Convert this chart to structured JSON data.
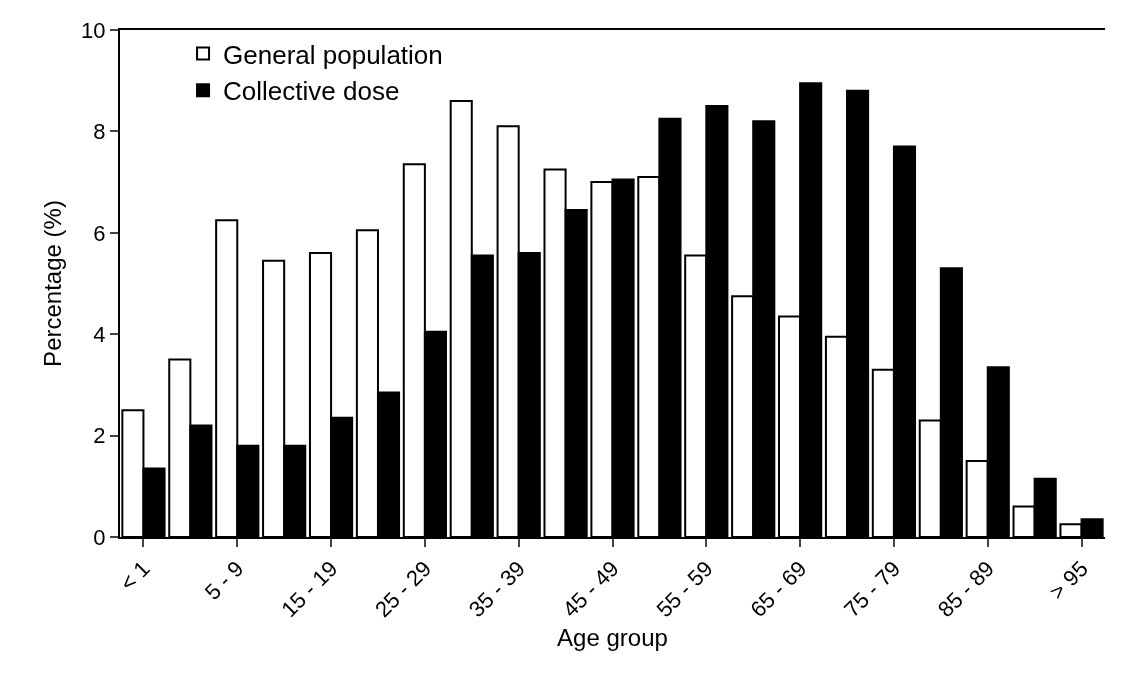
{
  "chart_data": {
    "type": "bar",
    "xlabel": "Age group",
    "ylabel": "Percentage (%)",
    "categories": [
      "< 1",
      null,
      "5 - 9",
      null,
      "15 - 19",
      null,
      "25 - 29",
      null,
      "35 - 39",
      null,
      "45 - 49",
      null,
      "55 - 59",
      null,
      "65 - 69",
      null,
      "75 - 79",
      null,
      "85 - 89",
      null,
      "> 95"
    ],
    "series": [
      {
        "name": "General population",
        "color": "#ffffff",
        "values": [
          2.5,
          3.5,
          6.25,
          5.45,
          5.6,
          6.05,
          7.35,
          8.6,
          8.1,
          7.25,
          7.0,
          7.1,
          5.55,
          4.75,
          4.35,
          3.95,
          3.3,
          2.3,
          1.5,
          0.6,
          0.25
        ]
      },
      {
        "name": "Collective dose",
        "color": "#000000",
        "values": [
          1.35,
          2.2,
          1.8,
          1.8,
          2.35,
          2.85,
          4.05,
          5.55,
          5.6,
          6.45,
          7.05,
          8.25,
          8.5,
          8.2,
          8.95,
          8.8,
          7.7,
          5.3,
          3.35,
          1.15,
          0.35
        ]
      }
    ],
    "ylim": [
      0,
      10
    ],
    "yticks": [
      0,
      2,
      4,
      6,
      8,
      10
    ],
    "grid": false,
    "legend": "top"
  }
}
